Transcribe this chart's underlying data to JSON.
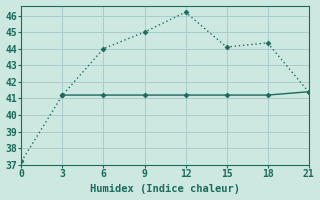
{
  "xlabel": "Humidex (Indice chaleur)",
  "background_color": "#cce8e0",
  "grid_color": "#aacccc",
  "line_color": "#1a6b5a",
  "xlim": [
    0,
    21
  ],
  "ylim": [
    37,
    46.6
  ],
  "xticks": [
    0,
    3,
    6,
    9,
    12,
    15,
    18,
    21
  ],
  "yticks": [
    37,
    38,
    39,
    40,
    41,
    42,
    43,
    44,
    45,
    46
  ],
  "line1_x": [
    0,
    3,
    6,
    9,
    12,
    15,
    18,
    21
  ],
  "line1_y": [
    37.2,
    41.2,
    44.0,
    45.0,
    46.2,
    44.1,
    44.35,
    41.4
  ],
  "line2_x": [
    3,
    6,
    9,
    12,
    15,
    18,
    21
  ],
  "line2_y": [
    41.2,
    41.2,
    41.2,
    41.2,
    41.2,
    41.2,
    41.4
  ],
  "marker": "D",
  "marker_size": 2.5,
  "line_width": 1.0,
  "xlabel_fontsize": 7.5,
  "tick_fontsize": 7
}
